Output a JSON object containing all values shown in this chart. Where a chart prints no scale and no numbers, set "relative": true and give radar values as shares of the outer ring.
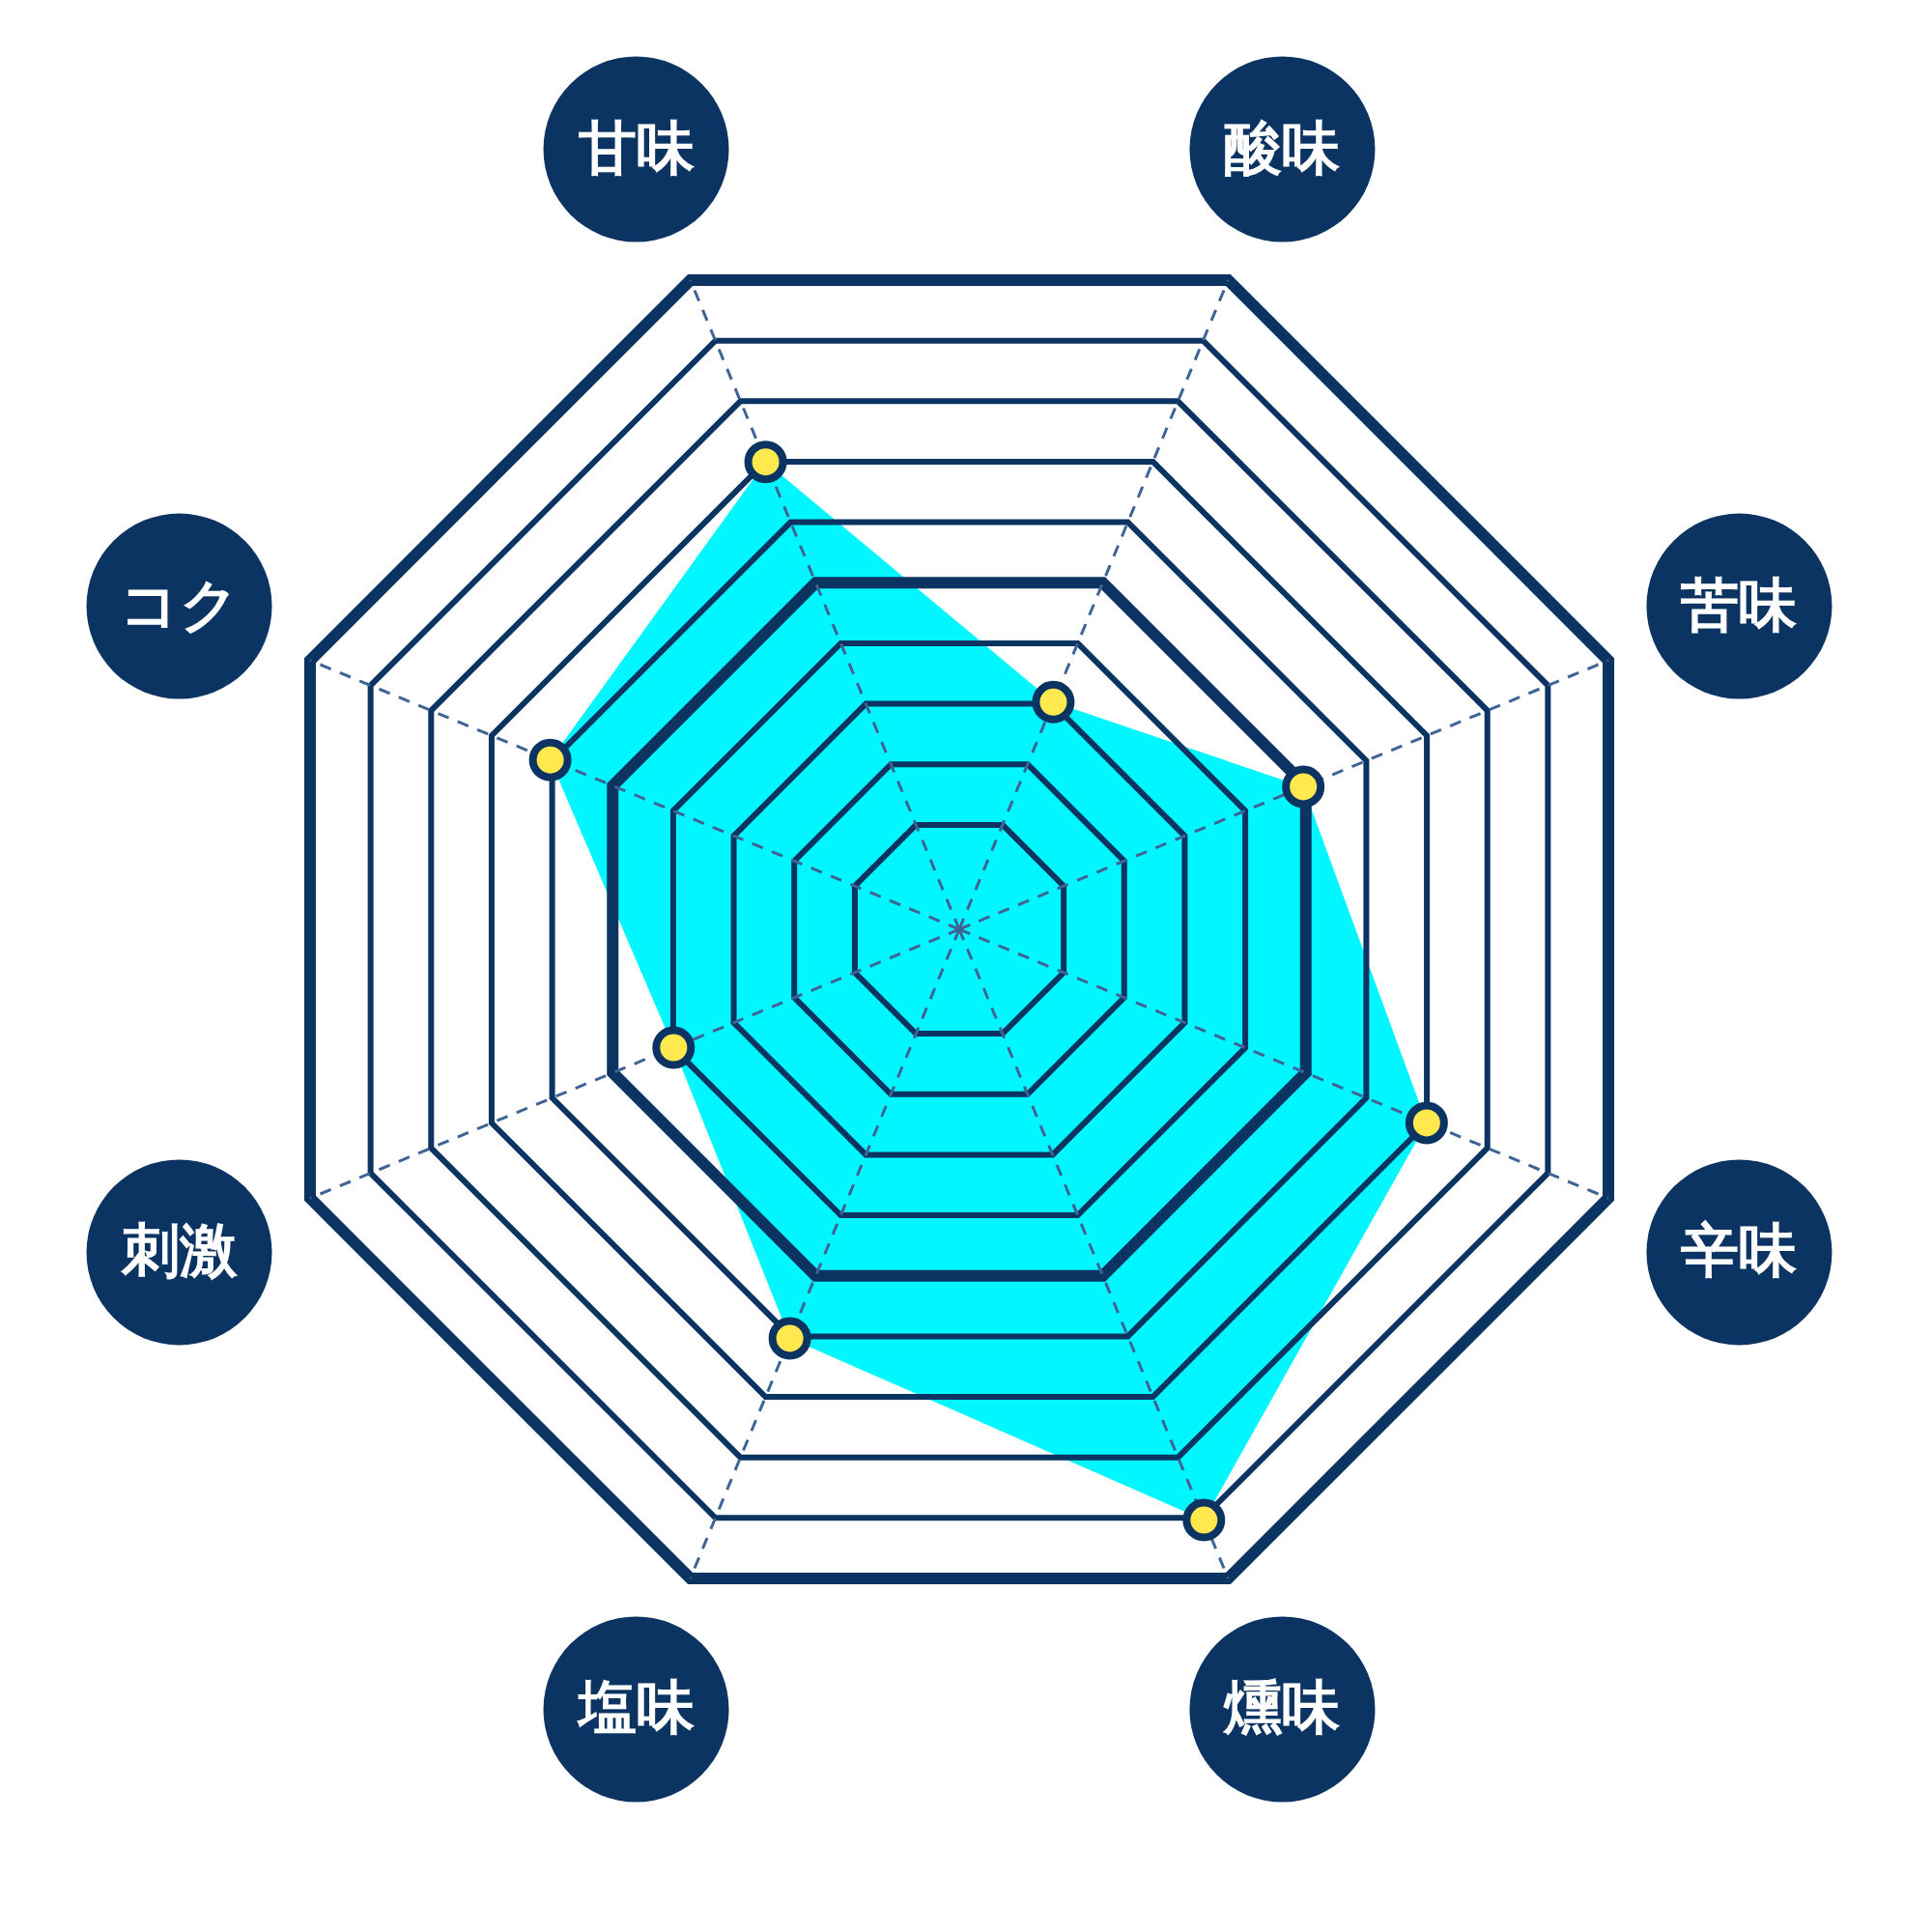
{
  "chart_data": {
    "type": "radar",
    "relative": true,
    "grid": true,
    "marker": "circle",
    "categories": [
      "酸味",
      "苦味",
      "辛味",
      "燻味",
      "塩味",
      "刺激",
      "コク",
      "甘味"
    ],
    "series": [
      {
        "color": "#00f7ff",
        "values": [
          0.35,
          0.53,
          0.72,
          0.91,
          0.63,
          0.44,
          0.63,
          0.72
        ]
      }
    ]
  }
}
